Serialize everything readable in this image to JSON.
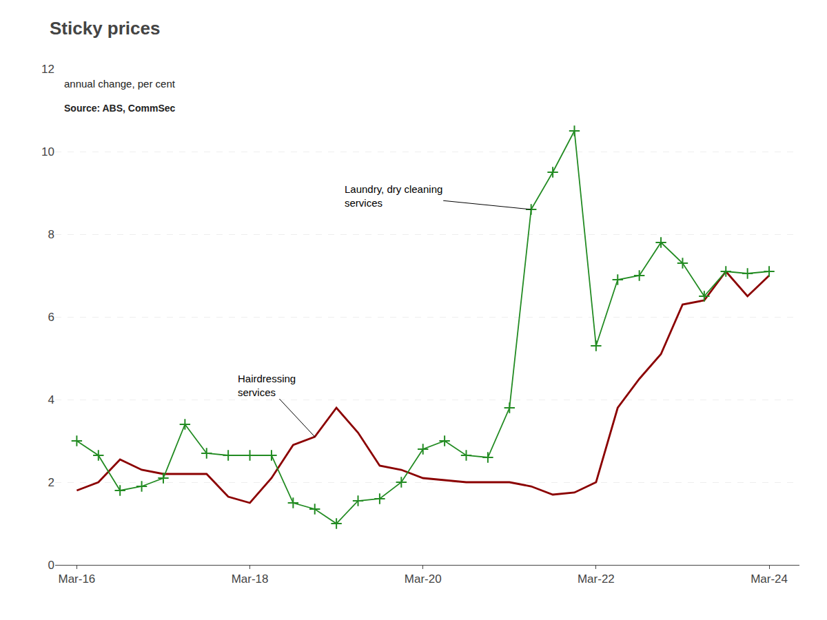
{
  "chart_data": {
    "type": "line",
    "title": "Sticky prices",
    "subtitle": "annual change, per cent",
    "annotations": [
      {
        "text": "Source: ABS, CommSec"
      }
    ],
    "x": [
      2016.25,
      2016.5,
      2016.75,
      2017.0,
      2017.25,
      2017.5,
      2017.75,
      2018.0,
      2018.25,
      2018.5,
      2018.75,
      2019.0,
      2019.25,
      2019.5,
      2019.75,
      2020.0,
      2020.25,
      2020.5,
      2020.75,
      2021.0,
      2021.25,
      2021.5,
      2021.75,
      2022.0,
      2022.25,
      2022.5,
      2022.75,
      2023.0,
      2023.25,
      2023.5,
      2023.75,
      2024.0,
      2024.25
    ],
    "series": [
      {
        "name": "Hairdressing\nservices",
        "color": "#8B0000",
        "marker": "none",
        "values": [
          1.8,
          2.0,
          2.55,
          2.3,
          2.2,
          2.2,
          2.2,
          1.65,
          1.5,
          2.1,
          2.9,
          3.1,
          3.8,
          3.2,
          2.4,
          2.3,
          2.1,
          2.05,
          2.0,
          2.0,
          2.0,
          1.9,
          1.7,
          1.75,
          2.0,
          3.8,
          4.5,
          5.1,
          6.3,
          6.4,
          7.1,
          6.5,
          7.0
        ]
      },
      {
        "name": "Laundry, dry cleaning\nservices",
        "color": "#228B22",
        "marker": "plus",
        "values": [
          3.0,
          2.65,
          1.8,
          1.9,
          2.1,
          3.4,
          2.7,
          2.65,
          2.65,
          2.65,
          1.5,
          1.35,
          1.0,
          1.55,
          1.6,
          2.0,
          2.8,
          3.0,
          2.65,
          2.6,
          3.8,
          8.6,
          9.5,
          10.5,
          5.3,
          6.9,
          7.0,
          7.8,
          7.3,
          6.5,
          7.1,
          7.05,
          7.1
        ]
      }
    ],
    "xlim": [
      2016.0,
      2024.6
    ],
    "xticks": [
      {
        "value": 2016.25,
        "label": "Mar-16"
      },
      {
        "value": 2018.25,
        "label": "Mar-18"
      },
      {
        "value": 2020.25,
        "label": "Mar-20"
      },
      {
        "value": 2022.25,
        "label": "Mar-22"
      },
      {
        "value": 2024.25,
        "label": "Mar-24"
      }
    ],
    "ylim": [
      0,
      12
    ],
    "yticks": [
      0,
      2,
      4,
      6,
      8,
      10,
      12
    ],
    "grid": true
  }
}
